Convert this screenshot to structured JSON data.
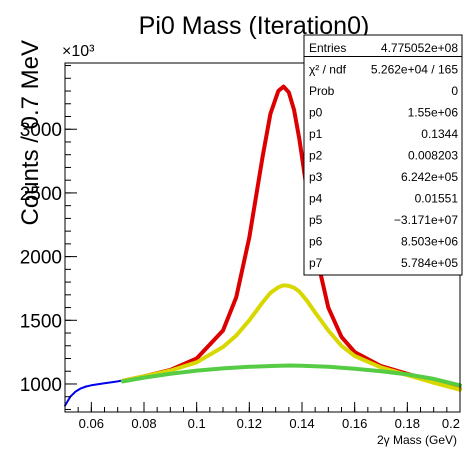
{
  "chart_data": {
    "type": "line",
    "title": "Pi0 Mass (Iteration0)",
    "xlabel": "2γ Mass (GeV)",
    "ylabel": "Counts / 0.7 MeV",
    "y_multiplier": "×10³",
    "xlim": [
      0.05,
      0.2
    ],
    "ylim": [
      780,
      3520
    ],
    "x_ticks": [
      "0.06",
      "0.08",
      "0.1",
      "0.12",
      "0.14",
      "0.16",
      "0.18",
      "0.2"
    ],
    "y_ticks": [
      "1000",
      "1500",
      "2000",
      "2500",
      "3000"
    ],
    "fit_range": [
      0.072,
      0.2
    ],
    "series": [
      {
        "kind": "histogram",
        "color": "#0000ee",
        "x": [
          0.05,
          0.052,
          0.054,
          0.056,
          0.058,
          0.06,
          0.065,
          0.07,
          0.075,
          0.08,
          0.09,
          0.1,
          0.11,
          0.115,
          0.12,
          0.125,
          0.128,
          0.131,
          0.133,
          0.135,
          0.137,
          0.139,
          0.142,
          0.145,
          0.15,
          0.155,
          0.16,
          0.17,
          0.18,
          0.19,
          0.2
        ],
        "y": [
          830,
          900,
          940,
          965,
          980,
          990,
          1005,
          1020,
          1040,
          1060,
          1110,
          1200,
          1420,
          1680,
          2150,
          2780,
          3120,
          3310,
          3340,
          3290,
          3150,
          2920,
          2500,
          2050,
          1600,
          1370,
          1250,
          1140,
          1080,
          1020,
          960
        ]
      },
      {
        "kind": "total_fit",
        "color": "#dd0000",
        "x": [
          0.072,
          0.08,
          0.09,
          0.1,
          0.11,
          0.115,
          0.12,
          0.125,
          0.128,
          0.131,
          0.133,
          0.135,
          0.137,
          0.139,
          0.142,
          0.145,
          0.15,
          0.155,
          0.16,
          0.17,
          0.18,
          0.19,
          0.2
        ],
        "y": [
          1025,
          1060,
          1110,
          1200,
          1420,
          1680,
          2150,
          2780,
          3120,
          3300,
          3335,
          3290,
          3150,
          2920,
          2500,
          2050,
          1600,
          1370,
          1250,
          1140,
          1080,
          1020,
          960
        ]
      },
      {
        "kind": "signal_plus_background",
        "color": "#d8d800",
        "x": [
          0.072,
          0.08,
          0.09,
          0.1,
          0.11,
          0.115,
          0.12,
          0.125,
          0.128,
          0.131,
          0.133,
          0.135,
          0.137,
          0.139,
          0.142,
          0.145,
          0.15,
          0.155,
          0.16,
          0.17,
          0.18,
          0.19,
          0.2
        ],
        "y": [
          1025,
          1060,
          1105,
          1170,
          1290,
          1380,
          1500,
          1640,
          1715,
          1760,
          1775,
          1770,
          1755,
          1725,
          1650,
          1560,
          1420,
          1300,
          1220,
          1130,
          1070,
          1010,
          955
        ]
      },
      {
        "kind": "background",
        "color": "#55cc44",
        "x": [
          0.072,
          0.08,
          0.09,
          0.1,
          0.11,
          0.12,
          0.13,
          0.135,
          0.14,
          0.15,
          0.16,
          0.17,
          0.18,
          0.19,
          0.2
        ],
        "y": [
          1020,
          1050,
          1080,
          1105,
          1122,
          1135,
          1142,
          1145,
          1143,
          1135,
          1120,
          1100,
          1075,
          1040,
          990
        ]
      }
    ],
    "stats": [
      {
        "label": "Entries",
        "value": "4.775052e+08"
      },
      {
        "label": "χ² / ndf",
        "value": "5.262e+04 / 165"
      },
      {
        "label": "Prob",
        "value": "0"
      },
      {
        "label": "p0",
        "value": "1.55e+06"
      },
      {
        "label": "p1",
        "value": "0.1344"
      },
      {
        "label": "p2",
        "value": "0.008203"
      },
      {
        "label": "p3",
        "value": "6.242e+05"
      },
      {
        "label": "p4",
        "value": "0.01551"
      },
      {
        "label": "p5",
        "value": "−3.171e+07"
      },
      {
        "label": "p6",
        "value": "8.503e+06"
      },
      {
        "label": "p7",
        "value": "5.784e+05"
      }
    ]
  }
}
